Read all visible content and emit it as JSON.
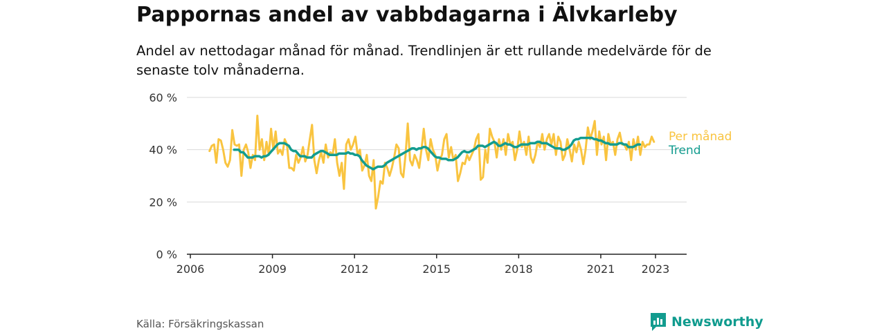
{
  "title": "Pappornas andel av vabbdagarna i Älvkarleby",
  "subtitle": "Andel av nettodagar månad för månad. Trendlinjen är ett rullande medelvärde för de senaste tolv månaderna.",
  "source": "Källa: Försäkringskassan",
  "brand": {
    "name": "Newsworthy",
    "icon": "newsworthy-logo-icon"
  },
  "colors": {
    "monthly": "#f9c440",
    "trend": "#139c8f",
    "grid": "#d9d9d9",
    "axis": "#222222",
    "text": "#333333"
  },
  "chart_data": {
    "type": "line",
    "title": "Pappornas andel av vabbdagarna i Älvkarleby",
    "xlabel": "",
    "ylabel": "",
    "xlim": [
      2006,
      2024.2
    ],
    "ylim": [
      0,
      60
    ],
    "x_ticks": [
      2006,
      2009,
      2012,
      2015,
      2018,
      2021,
      2023
    ],
    "x_tick_labels": [
      "2006",
      "2009",
      "2012",
      "2015",
      "2018",
      "2021",
      "2023"
    ],
    "y_ticks": [
      0,
      20,
      40,
      60
    ],
    "y_tick_labels": [
      "0 %",
      "20 %",
      "40 %",
      "60 %"
    ],
    "grid": true,
    "legend": "inline-right",
    "series": [
      {
        "name": "Per månad",
        "start": 2006.7,
        "step": 0.0833,
        "values": [
          39.5,
          41.5,
          42,
          35,
          44,
          43.5,
          40,
          35,
          33.5,
          36,
          47.5,
          42,
          41.5,
          42,
          30,
          40,
          42,
          39,
          33,
          38,
          36,
          53,
          40,
          44,
          36,
          43,
          38,
          48,
          40,
          47,
          38.5,
          40,
          38,
          44,
          42,
          33,
          33,
          32,
          38,
          35,
          37,
          41,
          35.5,
          38,
          44,
          49.5,
          36,
          31,
          36,
          39,
          35,
          42,
          37,
          39,
          38,
          44,
          35,
          30,
          35,
          25,
          42,
          44,
          40,
          42,
          45,
          38,
          40,
          32,
          34,
          38,
          30,
          28,
          36,
          17.5,
          22,
          28,
          27,
          35,
          33,
          30,
          33,
          37,
          42,
          40.5,
          31,
          29.5,
          38,
          50,
          36,
          34,
          38,
          36,
          33,
          40,
          48,
          40,
          36,
          44,
          40,
          38,
          32,
          36,
          38,
          44,
          46,
          37,
          41,
          36,
          38,
          28,
          31,
          35,
          34.5,
          38,
          36,
          38,
          40,
          44,
          46,
          28.5,
          29.5,
          40,
          35,
          48,
          45,
          43,
          37,
          44,
          40,
          44,
          38,
          46,
          42,
          43,
          36,
          40,
          47,
          41,
          43,
          38,
          45,
          37,
          35,
          38,
          43,
          41,
          46,
          40,
          44,
          46,
          42,
          46,
          38,
          45,
          43,
          36,
          38,
          44,
          40,
          35.5,
          42,
          39,
          43,
          40,
          34.5,
          40,
          48.5,
          44,
          47,
          51,
          38,
          47,
          42,
          45,
          36,
          46,
          42,
          43,
          38,
          44,
          46.5,
          42,
          42,
          40,
          43,
          36,
          44,
          40,
          45,
          38,
          43,
          41,
          42,
          42,
          45,
          43
        ]
      },
      {
        "name": "Trend",
        "start": 2007.6,
        "step": 0.0833,
        "values": [
          40,
          40,
          40,
          39,
          39,
          38,
          37,
          37,
          37,
          37.5,
          37.5,
          37.5,
          37,
          37.5,
          37.5,
          38,
          39,
          40,
          41,
          42,
          42.5,
          42.5,
          42.5,
          42,
          41.5,
          40,
          39.5,
          39.5,
          38.5,
          37.5,
          37.5,
          37.5,
          37,
          37,
          37,
          38,
          38.5,
          39,
          39.5,
          39.5,
          39,
          38.5,
          38,
          38,
          38,
          38,
          38.5,
          38.5,
          38.5,
          38.5,
          39,
          38.5,
          38.5,
          38,
          38,
          37.5,
          36,
          35,
          34,
          33.5,
          33,
          32.5,
          33,
          33.5,
          33.5,
          33.5,
          34,
          35,
          35.5,
          36,
          36.5,
          37,
          37.5,
          38,
          38.5,
          39,
          39.5,
          40,
          40.5,
          40.5,
          40,
          40.5,
          40.5,
          41,
          41,
          40.5,
          39.5,
          38.5,
          37.5,
          37,
          37,
          36.5,
          36.5,
          36.5,
          36,
          36,
          36,
          36.5,
          37,
          38,
          39,
          39.5,
          39,
          39,
          39.5,
          40,
          40.5,
          41.5,
          41.5,
          41.5,
          41,
          41.5,
          42,
          42.5,
          43,
          42.5,
          41.5,
          41.5,
          42,
          42.5,
          42,
          42,
          41.5,
          41,
          41,
          41.5,
          42,
          42,
          42,
          42,
          42.5,
          42.5,
          42.5,
          43,
          43,
          42.5,
          42.5,
          42.5,
          42,
          41.5,
          41,
          40.5,
          40.5,
          40.5,
          40,
          40,
          40.5,
          41,
          42,
          43.5,
          44,
          44,
          44.5,
          44.5,
          44.5,
          44.5,
          44.5,
          44.5,
          44,
          44,
          43.5,
          43.5,
          43,
          42.5,
          42.5,
          42,
          42,
          42,
          42,
          42.5,
          42.5,
          42,
          42,
          41,
          41,
          41,
          41.5,
          42,
          42
        ]
      }
    ],
    "legend_labels": [
      "Per månad",
      "Trend"
    ]
  }
}
